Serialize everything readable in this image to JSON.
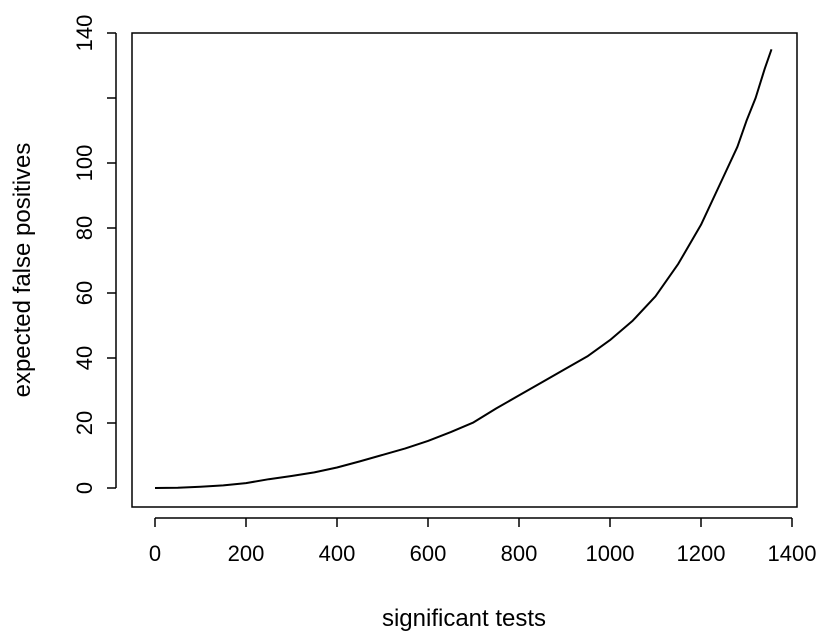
{
  "chart_data": {
    "type": "line",
    "title": "",
    "xlabel": "significant tests",
    "ylabel": "expected false positives",
    "xlim": [
      0,
      1400
    ],
    "ylim": [
      0,
      140
    ],
    "xticks": [
      0,
      200,
      400,
      600,
      800,
      1000,
      1200,
      1400
    ],
    "yticks": [
      0,
      20,
      40,
      60,
      80,
      100,
      120,
      140
    ],
    "ytick_labels": [
      "0",
      "20",
      "40",
      "60",
      "80",
      "100",
      "",
      "140"
    ],
    "grid": false,
    "legend": "none",
    "line_color": "#000000",
    "series": [
      {
        "x": [
          0,
          50,
          100,
          150,
          200,
          250,
          300,
          350,
          400,
          450,
          500,
          550,
          600,
          650,
          700,
          750,
          800,
          850,
          900,
          950,
          1000,
          1050,
          1100,
          1150,
          1200,
          1250,
          1280,
          1300,
          1320,
          1340,
          1355
        ],
        "y": [
          0,
          0.1,
          0.4,
          0.8,
          1.5,
          2.7,
          3.7,
          4.8,
          6.3,
          8.2,
          10.2,
          12.2,
          14.5,
          17.2,
          20.2,
          24.5,
          28.5,
          32.5,
          36.5,
          40.5,
          45.5,
          51.5,
          59,
          69,
          81,
          96,
          105,
          113,
          120,
          129,
          135
        ]
      }
    ]
  }
}
